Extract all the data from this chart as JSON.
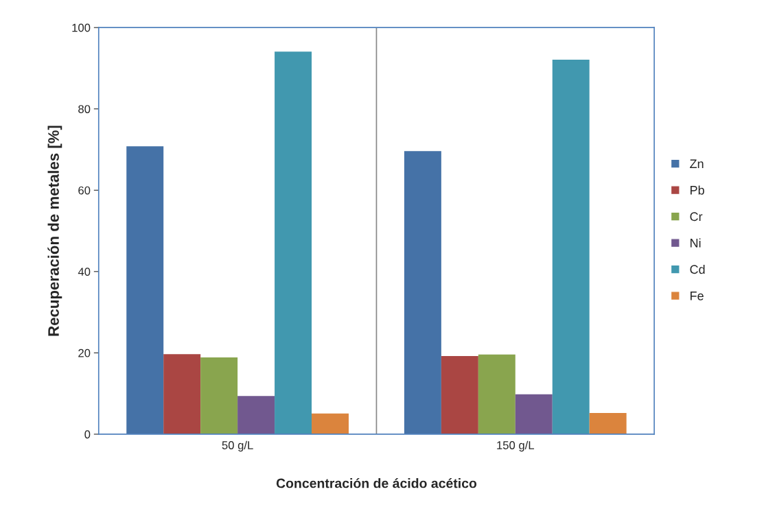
{
  "chart_data": {
    "type": "bar",
    "xlabel": "Concentración de ácido acético",
    "ylabel": "Recuperación de metales [%]",
    "categories": [
      "50 g/L",
      "150 g/L"
    ],
    "series": [
      {
        "name": "Zn",
        "color": "#4572a7",
        "values": [
          70.8,
          69.6
        ]
      },
      {
        "name": "Pb",
        "color": "#aa4643",
        "values": [
          19.7,
          19.2
        ]
      },
      {
        "name": "Cr",
        "color": "#89a54e",
        "values": [
          18.9,
          19.6
        ]
      },
      {
        "name": "Ni",
        "color": "#71588f",
        "values": [
          9.4,
          9.8
        ]
      },
      {
        "name": "Cd",
        "color": "#4198af",
        "values": [
          94.1,
          92.1
        ]
      },
      {
        "name": "Fe",
        "color": "#db843d",
        "values": [
          5.1,
          5.2
        ]
      }
    ],
    "ylim": [
      0,
      100
    ],
    "yticks": [
      0,
      20,
      40,
      60,
      80,
      100
    ],
    "grid": "x",
    "legend": "right"
  }
}
